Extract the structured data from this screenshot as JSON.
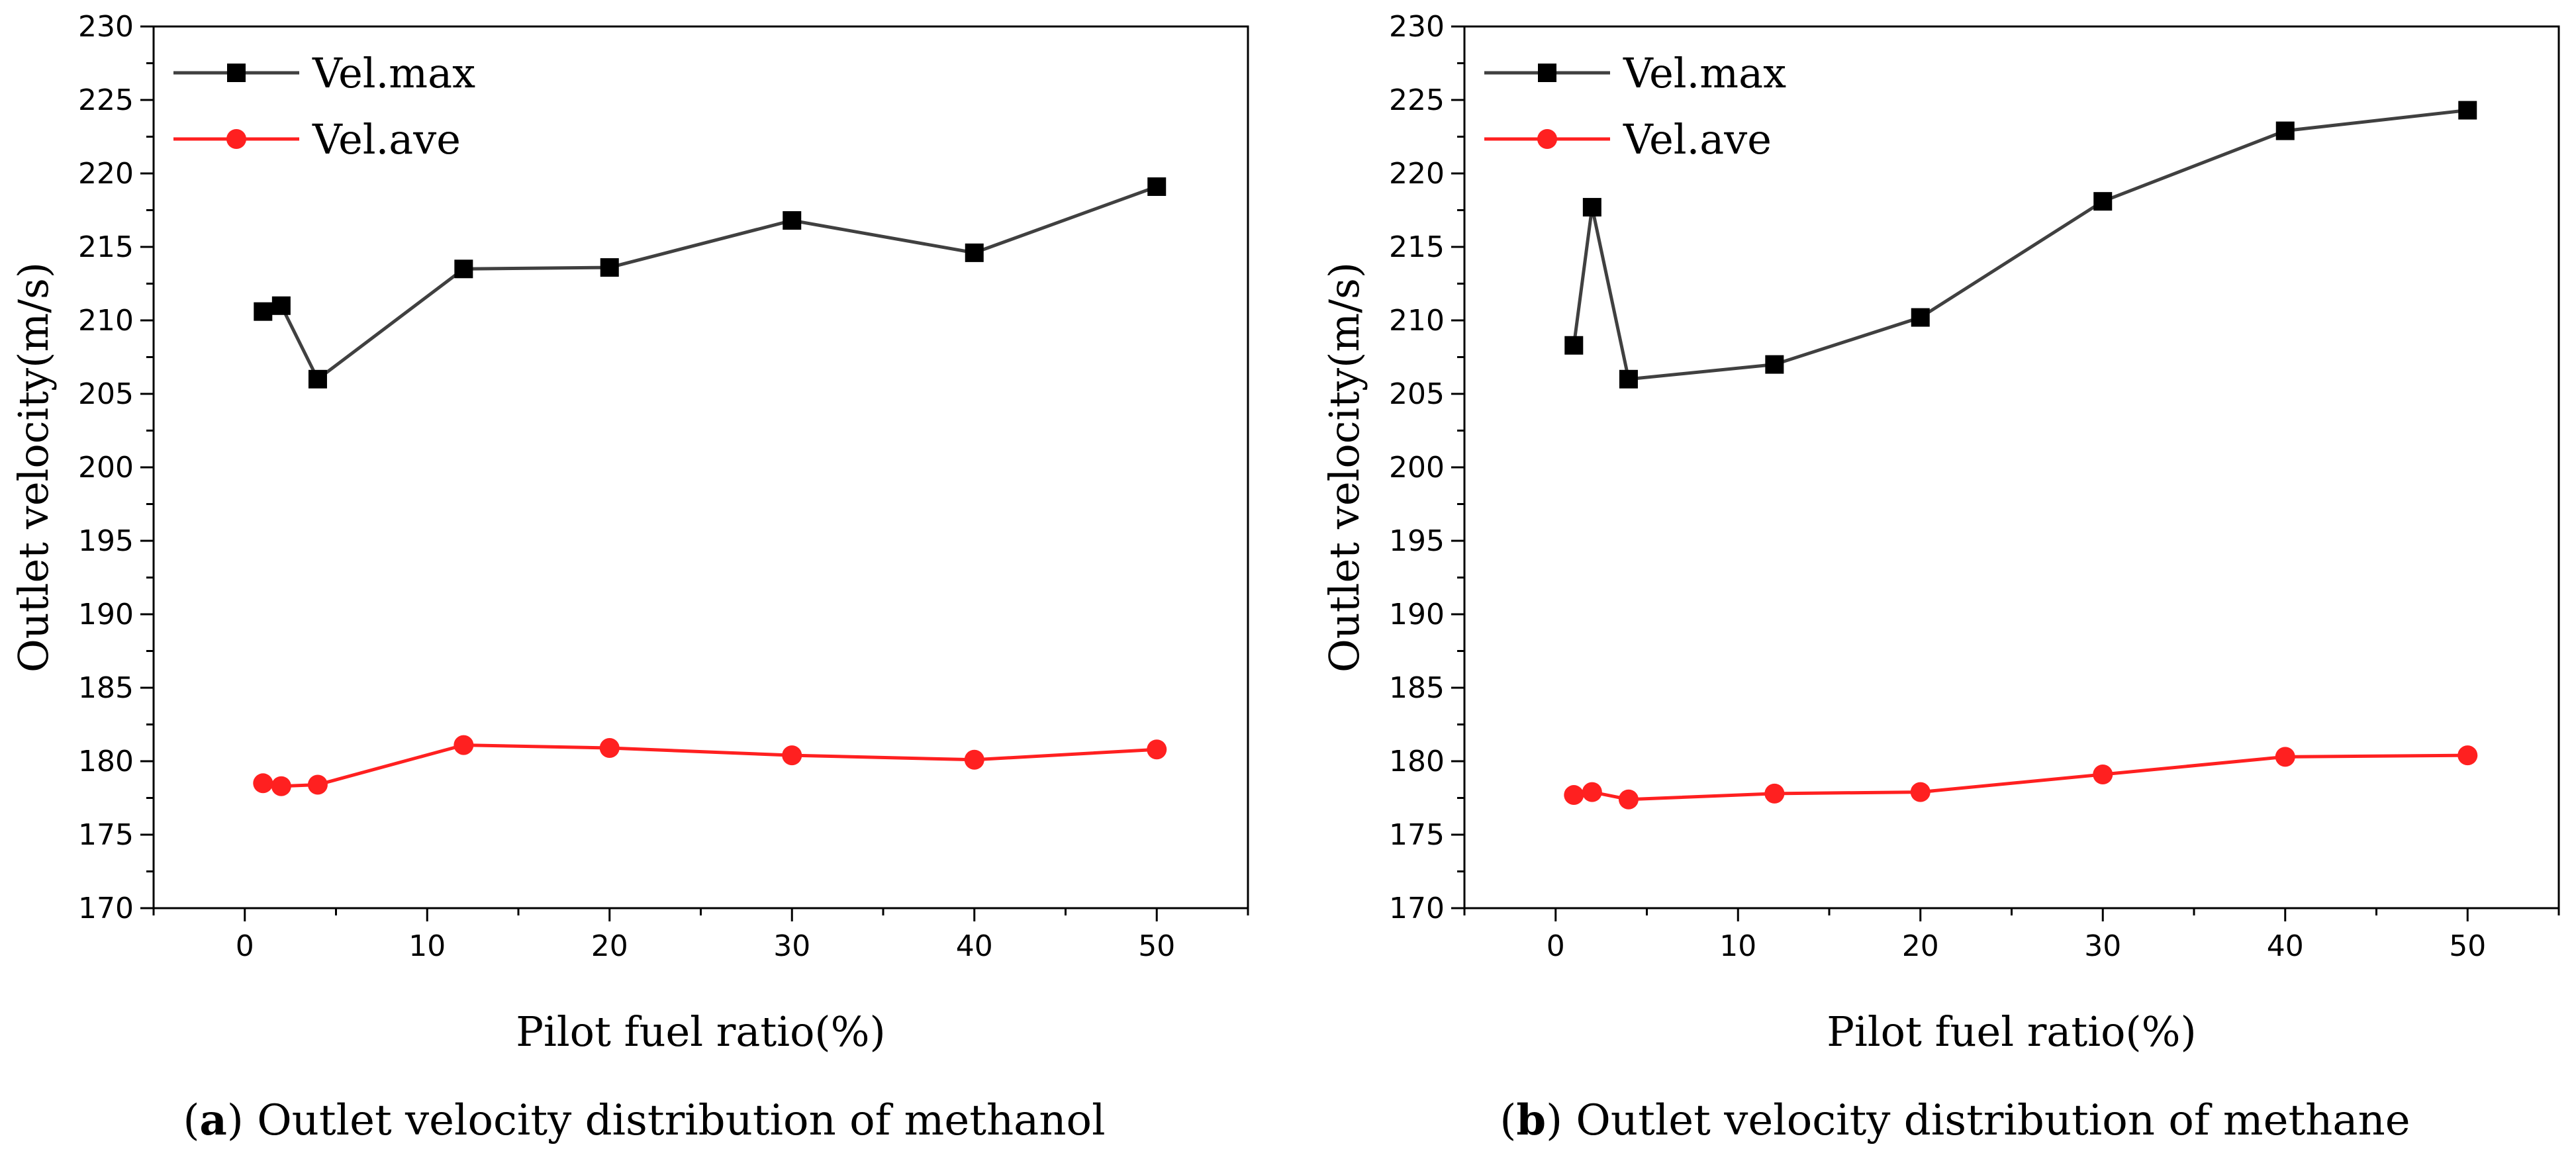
{
  "chart_data": [
    {
      "type": "line",
      "panel": "a",
      "caption_letter": "a",
      "caption_text": ") Outlet velocity distribution of methanol",
      "xlabel": "Pilot fuel ratio(%)",
      "ylabel": "Outlet velocity(m/s)",
      "xlim": [
        -5,
        55
      ],
      "ylim": [
        170,
        230
      ],
      "xticks": [
        0,
        10,
        20,
        30,
        40,
        50
      ],
      "yticks": [
        170,
        175,
        180,
        185,
        190,
        195,
        200,
        205,
        210,
        215,
        220,
        225,
        230
      ],
      "legend_position": "top-left",
      "series": [
        {
          "name": "Vel.max",
          "color": "#404040",
          "marker": "square",
          "x": [
            1,
            2,
            4,
            12,
            20,
            30,
            40,
            50
          ],
          "y": [
            210.6,
            211.0,
            206.0,
            213.5,
            213.6,
            216.8,
            214.6,
            219.1
          ]
        },
        {
          "name": "Vel.ave",
          "color": "#ff2020",
          "marker": "circle",
          "x": [
            1,
            2,
            4,
            12,
            20,
            30,
            40,
            50
          ],
          "y": [
            178.5,
            178.3,
            178.4,
            181.1,
            180.9,
            180.4,
            180.1,
            180.8
          ]
        }
      ]
    },
    {
      "type": "line",
      "panel": "b",
      "caption_letter": "b",
      "caption_text": ") Outlet velocity distribution of methane",
      "xlabel": "Pilot fuel ratio(%)",
      "ylabel": "Outlet velocity(m/s)",
      "xlim": [
        -5,
        55
      ],
      "ylim": [
        170,
        230
      ],
      "xticks": [
        0,
        10,
        20,
        30,
        40,
        50
      ],
      "yticks": [
        170,
        175,
        180,
        185,
        190,
        195,
        200,
        205,
        210,
        215,
        220,
        225,
        230
      ],
      "legend_position": "top-left",
      "series": [
        {
          "name": "Vel.max",
          "color": "#404040",
          "marker": "square",
          "x": [
            1,
            2,
            4,
            12,
            20,
            30,
            40,
            50
          ],
          "y": [
            208.3,
            217.7,
            206.0,
            207.0,
            210.2,
            218.1,
            222.9,
            224.3
          ]
        },
        {
          "name": "Vel.ave",
          "color": "#ff2020",
          "marker": "circle",
          "x": [
            1,
            2,
            4,
            12,
            20,
            30,
            40,
            50
          ],
          "y": [
            177.7,
            177.9,
            177.4,
            177.8,
            177.9,
            179.1,
            180.3,
            180.4
          ]
        }
      ]
    }
  ]
}
